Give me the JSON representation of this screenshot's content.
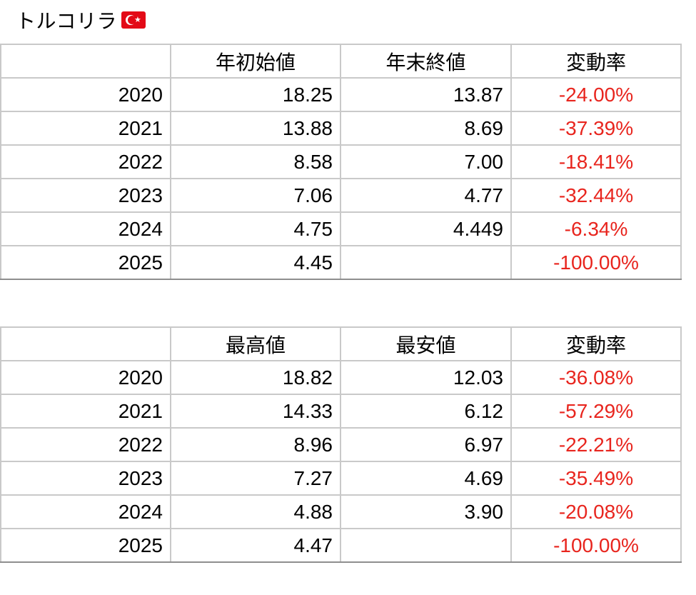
{
  "title": "トルコリラ",
  "flag_icon": "turkey-flag-icon",
  "colors": {
    "negative": "#e8251e",
    "grid": "#c9c9c9"
  },
  "table1": {
    "headers": [
      "",
      "年初始値",
      "年末終値",
      "変動率"
    ],
    "rows": [
      {
        "year": "2020",
        "a": "18.25",
        "b": "13.87",
        "change": "-24.00%"
      },
      {
        "year": "2021",
        "a": "13.88",
        "b": "8.69",
        "change": "-37.39%"
      },
      {
        "year": "2022",
        "a": "8.58",
        "b": "7.00",
        "change": "-18.41%"
      },
      {
        "year": "2023",
        "a": "7.06",
        "b": "4.77",
        "change": "-32.44%"
      },
      {
        "year": "2024",
        "a": "4.75",
        "b": "4.449",
        "change": "-6.34%"
      },
      {
        "year": "2025",
        "a": "4.45",
        "b": "",
        "change": "-100.00%"
      }
    ]
  },
  "table2": {
    "headers": [
      "",
      "最高値",
      "最安値",
      "変動率"
    ],
    "rows": [
      {
        "year": "2020",
        "a": "18.82",
        "b": "12.03",
        "change": "-36.08%"
      },
      {
        "year": "2021",
        "a": "14.33",
        "b": "6.12",
        "change": "-57.29%"
      },
      {
        "year": "2022",
        "a": "8.96",
        "b": "6.97",
        "change": "-22.21%"
      },
      {
        "year": "2023",
        "a": "7.27",
        "b": "4.69",
        "change": "-35.49%"
      },
      {
        "year": "2024",
        "a": "4.88",
        "b": "3.90",
        "change": "-20.08%"
      },
      {
        "year": "2025",
        "a": "4.47",
        "b": "",
        "change": "-100.00%"
      }
    ]
  }
}
